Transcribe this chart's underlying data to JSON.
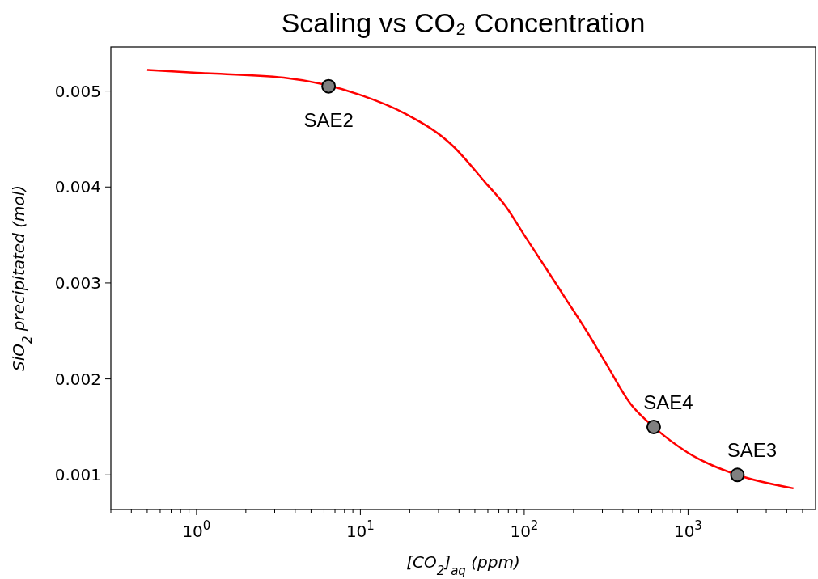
{
  "chart_data": {
    "type": "line",
    "title": "Scaling vs CO₂ Concentration",
    "xlabel": "[CO$_{2}$]$_{aq}$ (ppm)",
    "ylabel": "SiO$_{2}$ precipitated (mol)",
    "log": "x",
    "xlim": [
      0.3,
      6000
    ],
    "ylim": [
      0.00064,
      0.00546
    ],
    "xticks": [
      {
        "value": 0.3,
        "label": null
      },
      {
        "value": 0.4,
        "label": null
      },
      {
        "value": 0.5,
        "label": null
      },
      {
        "value": 0.6,
        "label": null
      },
      {
        "value": 0.7,
        "label": null
      },
      {
        "value": 0.8,
        "label": null
      },
      {
        "value": 0.9,
        "label": null
      },
      {
        "value": 1,
        "label": "10$^{0}$"
      },
      {
        "value": 2,
        "label": null
      },
      {
        "value": 3,
        "label": null
      },
      {
        "value": 4,
        "label": null
      },
      {
        "value": 5,
        "label": null
      },
      {
        "value": 6,
        "label": null
      },
      {
        "value": 7,
        "label": null
      },
      {
        "value": 8,
        "label": null
      },
      {
        "value": 9,
        "label": null
      },
      {
        "value": 10,
        "label": "10$^{1}$"
      },
      {
        "value": 20,
        "label": null
      },
      {
        "value": 30,
        "label": null
      },
      {
        "value": 40,
        "label": null
      },
      {
        "value": 50,
        "label": null
      },
      {
        "value": 60,
        "label": null
      },
      {
        "value": 70,
        "label": null
      },
      {
        "value": 80,
        "label": null
      },
      {
        "value": 90,
        "label": null
      },
      {
        "value": 100,
        "label": "10$^{2}$"
      },
      {
        "value": 200,
        "label": null
      },
      {
        "value": 300,
        "label": null
      },
      {
        "value": 400,
        "label": null
      },
      {
        "value": 500,
        "label": null
      },
      {
        "value": 600,
        "label": null
      },
      {
        "value": 700,
        "label": null
      },
      {
        "value": 800,
        "label": null
      },
      {
        "value": 900,
        "label": null
      },
      {
        "value": 1000,
        "label": "10$^{3}$"
      },
      {
        "value": 2000,
        "label": null
      },
      {
        "value": 3000,
        "label": null
      },
      {
        "value": 4000,
        "label": null
      },
      {
        "value": 5000,
        "label": null
      }
    ],
    "yticks": [
      0.001,
      0.002,
      0.003,
      0.004,
      0.005
    ],
    "series": [
      {
        "color": "#ff0000",
        "marker": "none",
        "line_style": "solid",
        "x": [
          0.5,
          1,
          3.4,
          10,
          18.5,
          36.6,
          57.7,
          77,
          100,
          135,
          180,
          240,
          316,
          446,
          617,
          1000,
          2000,
          4400
        ],
        "values": [
          0.00522,
          0.00519,
          0.00514,
          0.00496,
          0.00477,
          0.00443,
          0.00405,
          0.0038,
          0.0035,
          0.00316,
          0.00283,
          0.0025,
          0.00216,
          0.00174,
          0.0015,
          0.00123,
          0.001,
          0.00086
        ]
      },
      {
        "type": "scatter",
        "color": "#808080",
        "marker": "circle",
        "x": [
          6.4,
          617,
          2000
        ],
        "values": [
          0.00505,
          0.0015,
          0.001
        ]
      }
    ],
    "annotations": [
      {
        "text": "SAE2",
        "x": 6.4,
        "y": 0.00505
      },
      {
        "text": "SAE4",
        "x": 617,
        "y": 0.0015
      },
      {
        "text": "SAE3",
        "x": 2000,
        "y": 0.001
      }
    ]
  }
}
